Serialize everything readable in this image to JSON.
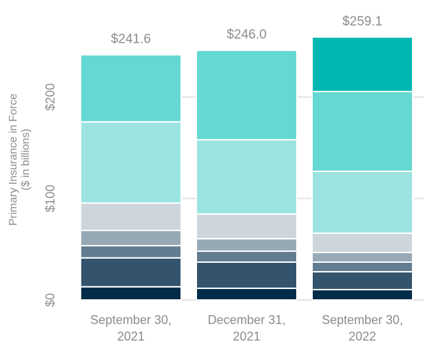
{
  "chart_data": {
    "type": "stacked-bar",
    "y_label": [
      "Primary Insurance in Force",
      "($ in billions)"
    ],
    "categories": [
      [
        "September 30,",
        "2021"
      ],
      [
        "December 31,",
        "2021"
      ],
      [
        "September 30,",
        "2022"
      ]
    ],
    "series": [
      {
        "color": "#002b49",
        "values": [
          13,
          11.5,
          10.2
        ]
      },
      {
        "color": "#34546e",
        "values": [
          28.5,
          25.8,
          17.6
        ]
      },
      {
        "color": "#627d91",
        "values": [
          12,
          10.8,
          9.5
        ]
      },
      {
        "color": "#98a9b6",
        "values": [
          15,
          12.2,
          9.5
        ]
      },
      {
        "color": "#cdd6dd",
        "values": [
          27,
          24.4,
          19
        ]
      },
      {
        "color": "#9ce4e1",
        "values": [
          80,
          73.2,
          61
        ]
      },
      {
        "color": "#64d8d2",
        "values": [
          66.1,
          88.1,
          78.6
        ]
      },
      {
        "color": "#00b8b1",
        "values": [
          null,
          null,
          53.7
        ]
      }
    ],
    "totals": [
      241.6,
      246.0,
      259.1
    ],
    "total_labels": [
      "$241.6",
      "$246.0",
      "$259.1"
    ],
    "ylim": [
      0,
      265
    ],
    "yticks": [
      {
        "value": 0,
        "label": "$0"
      },
      {
        "value": 100,
        "label": "$100"
      },
      {
        "value": 200,
        "label": "$200"
      }
    ],
    "grid": true
  }
}
